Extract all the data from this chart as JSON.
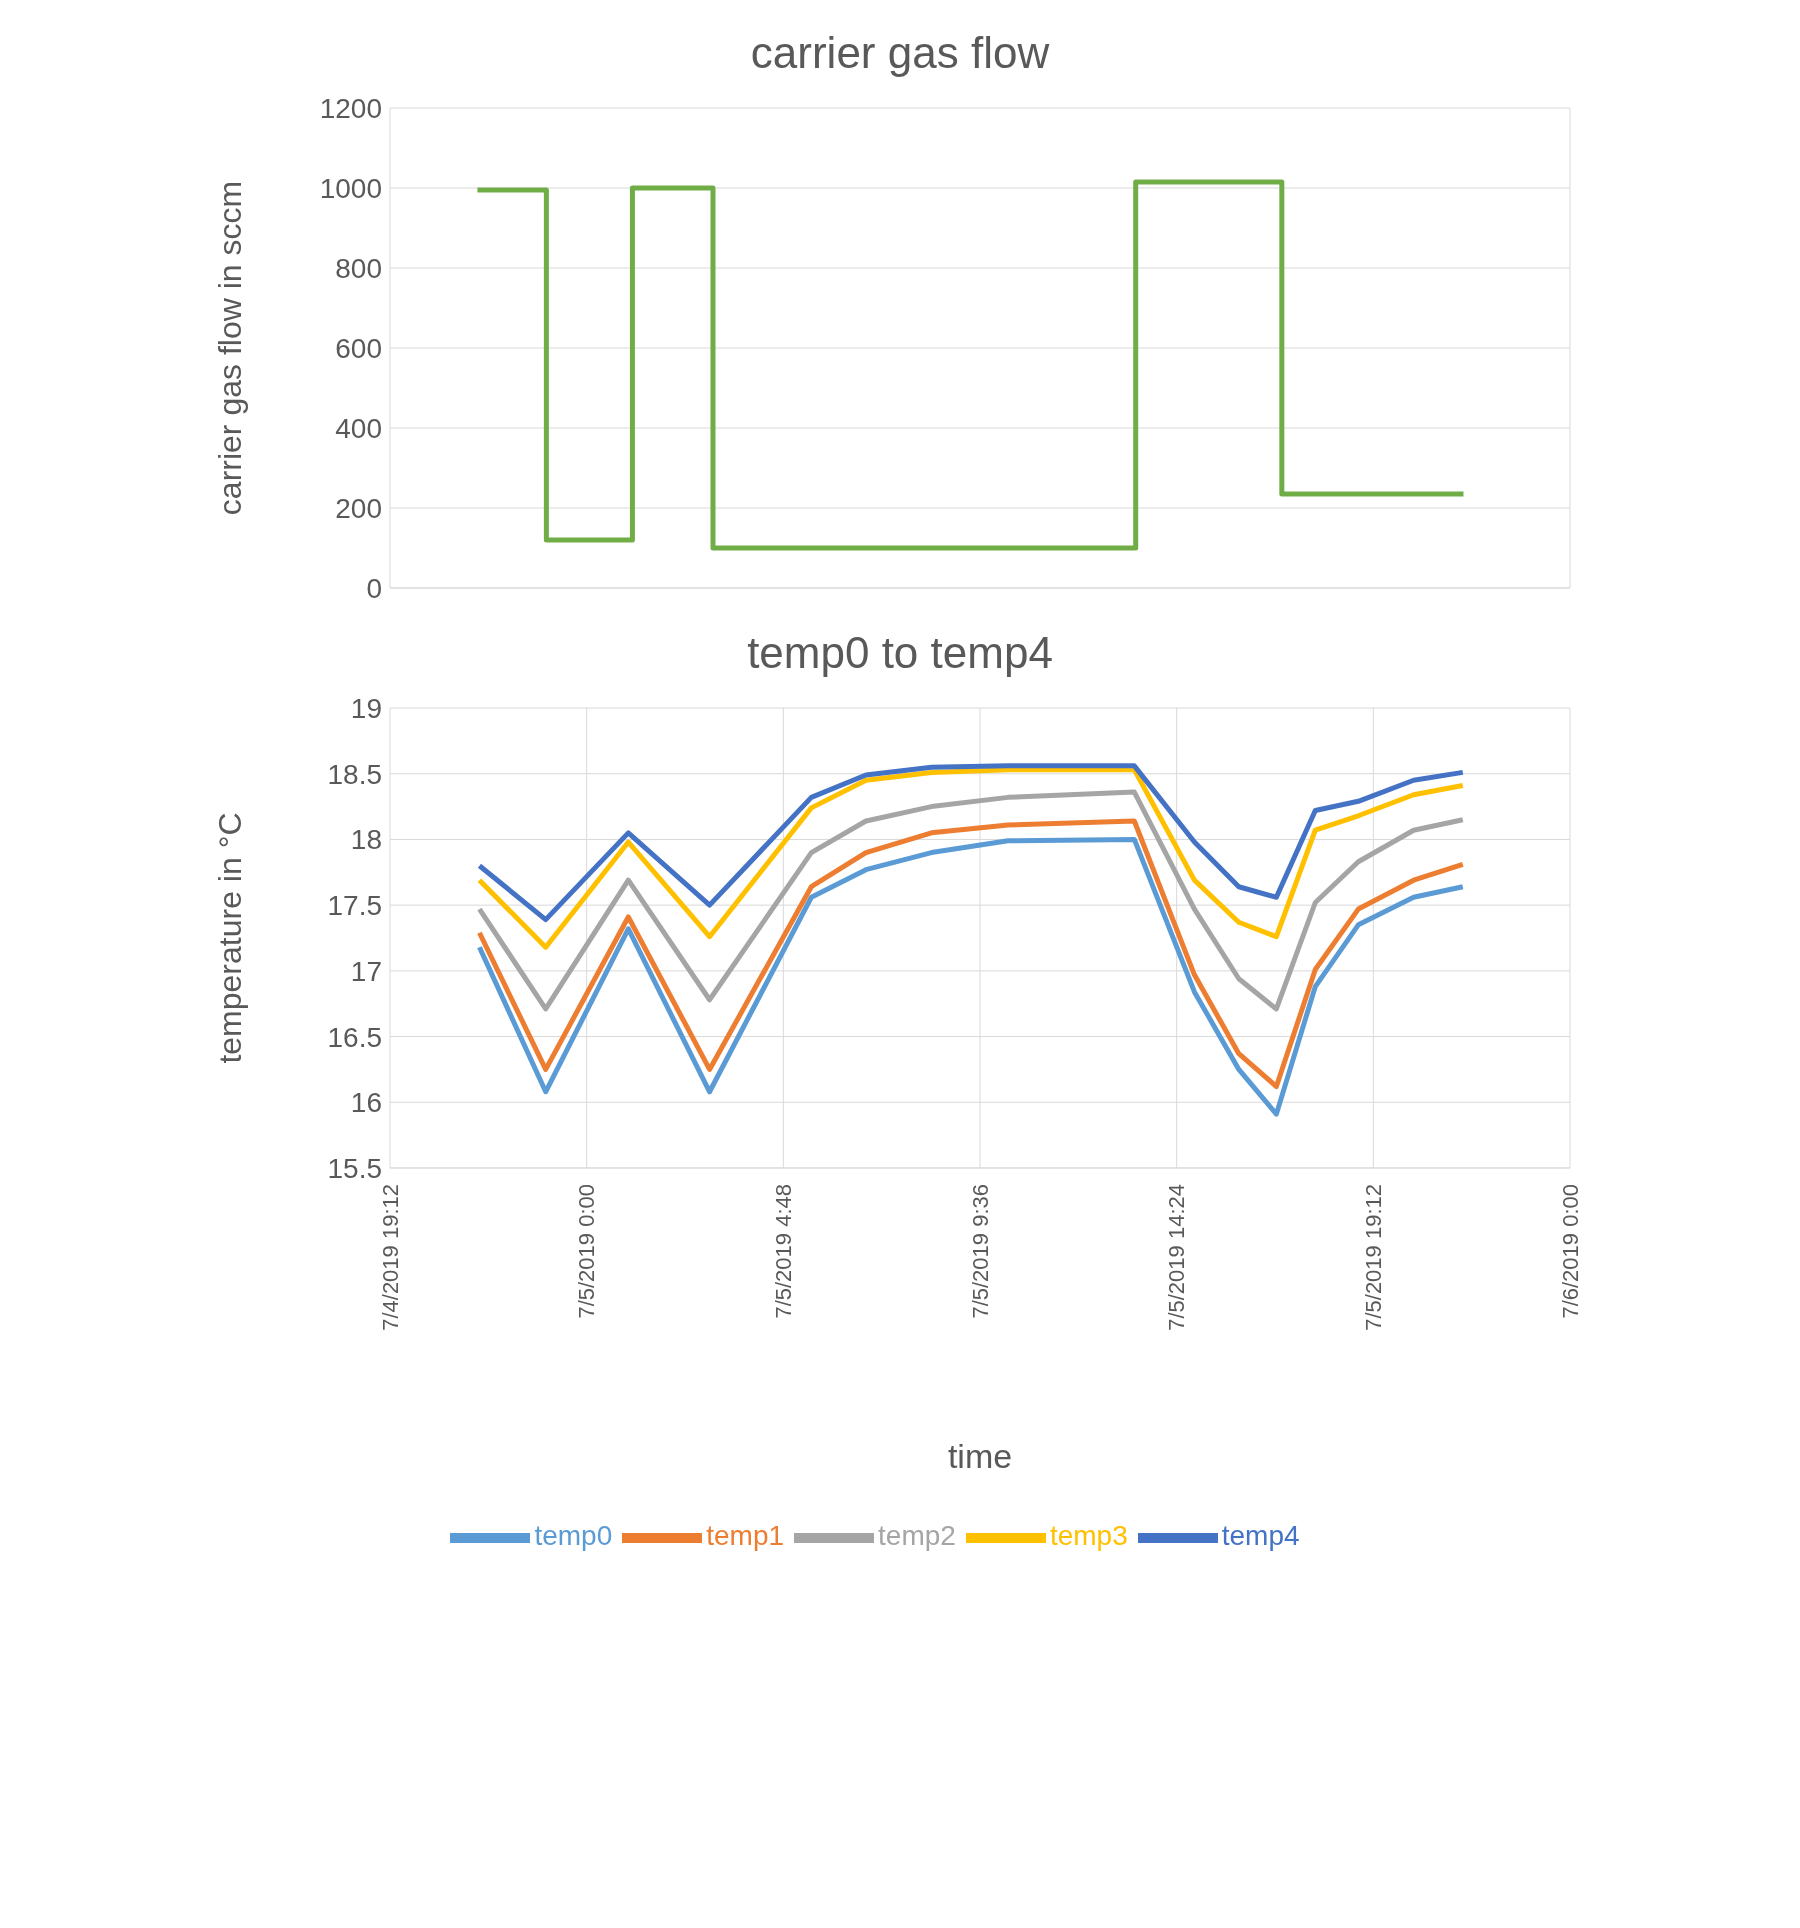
{
  "chart_data": [
    {
      "type": "step",
      "title": "carrier gas flow",
      "ylabel": "carrier gas flow in sccm",
      "xlim": [
        "2019-07-04T19:12",
        "2019-07-06T00:00"
      ],
      "xticks": [
        {
          "value": "2019-07-04T19:12",
          "label": null
        },
        {
          "value": "2019-07-05T00:00",
          "label": null
        },
        {
          "value": "2019-07-05T04:48",
          "label": null
        },
        {
          "value": "2019-07-05T09:36",
          "label": null
        },
        {
          "value": "2019-07-05T14:24",
          "label": null
        },
        {
          "value": "2019-07-05T19:12",
          "label": null
        },
        {
          "value": "2019-07-06T00:00",
          "label": null
        }
      ],
      "ylim": [
        0,
        1200
      ],
      "yticks": [
        0,
        200,
        400,
        600,
        800,
        1000,
        1200
      ],
      "tick_labels": "y",
      "grid": true,
      "legend": false,
      "marker": "none",
      "x": [
        "2019-07-04T21:20",
        "2019-07-04T23:01",
        "2019-07-05T01:07",
        "2019-07-05T03:05",
        "2019-07-05T13:24",
        "2019-07-05T16:58",
        "2019-07-05T21:24"
      ],
      "series": [
        {
          "color": "#70ad47",
          "values": [
            995,
            120,
            1000,
            100,
            1015,
            235,
            235
          ]
        }
      ]
    },
    {
      "type": "line",
      "title": "temp0 to temp4",
      "xlabel": "time",
      "ylabel": "temperature in °C",
      "xlim": [
        "2019-07-04T19:12",
        "2019-07-06T00:00"
      ],
      "xticks": [
        {
          "value": "2019-07-04T19:12",
          "label": "7/4/2019 19:12"
        },
        {
          "value": "2019-07-05T00:00",
          "label": "7/5/2019 0:00"
        },
        {
          "value": "2019-07-05T04:48",
          "label": "7/5/2019 4:48"
        },
        {
          "value": "2019-07-05T09:36",
          "label": "7/5/2019 9:36"
        },
        {
          "value": "2019-07-05T14:24",
          "label": "7/5/2019 14:24"
        },
        {
          "value": "2019-07-05T19:12",
          "label": "7/5/2019 19:12"
        },
        {
          "value": "2019-07-06T00:00",
          "label": "7/6/2019 0:00"
        }
      ],
      "ylim": [
        15.5,
        19
      ],
      "yticks": [
        15.5,
        16,
        16.5,
        17,
        17.5,
        18,
        18.5,
        19
      ],
      "grid": true,
      "legend": "bottom",
      "marker": "none",
      "x": [
        "2019-07-04T21:23",
        "2019-07-04T23:00",
        "2019-07-05T01:01",
        "2019-07-05T03:00",
        "2019-07-05T05:29",
        "2019-07-05T06:49",
        "2019-07-05T08:25",
        "2019-07-05T10:17",
        "2019-07-05T13:22",
        "2019-07-05T14:50",
        "2019-07-05T15:55",
        "2019-07-05T16:50",
        "2019-07-05T17:47",
        "2019-07-05T18:50",
        "2019-07-05T20:11",
        "2019-07-05T21:23"
      ],
      "series": [
        {
          "name": "temp0",
          "color": "#5b9bd5",
          "values": [
            17.18,
            16.08,
            17.32,
            16.08,
            17.56,
            17.77,
            17.9,
            17.99,
            18.0,
            16.84,
            16.25,
            15.91,
            16.88,
            17.35,
            17.56,
            17.64
          ]
        },
        {
          "name": "temp1",
          "color": "#ed7d31",
          "values": [
            17.29,
            16.25,
            17.41,
            16.25,
            17.64,
            17.9,
            18.05,
            18.11,
            18.14,
            16.97,
            16.37,
            16.12,
            17.01,
            17.47,
            17.69,
            17.81
          ]
        },
        {
          "name": "temp2",
          "color": "#a5a5a5",
          "values": [
            17.47,
            16.71,
            17.69,
            16.78,
            17.9,
            18.14,
            18.25,
            18.32,
            18.36,
            17.47,
            16.94,
            16.71,
            17.52,
            17.83,
            18.07,
            18.15
          ]
        },
        {
          "name": "temp3",
          "color": "#ffc000",
          "values": [
            17.69,
            17.18,
            17.98,
            17.26,
            18.24,
            18.45,
            18.51,
            18.53,
            18.53,
            17.69,
            17.37,
            17.26,
            18.07,
            18.18,
            18.34,
            18.41
          ]
        },
        {
          "name": "temp4",
          "color": "#4472c4",
          "values": [
            17.8,
            17.39,
            18.05,
            17.5,
            18.32,
            18.49,
            18.55,
            18.56,
            18.56,
            17.98,
            17.64,
            17.56,
            18.22,
            18.29,
            18.45,
            18.51
          ]
        }
      ]
    }
  ]
}
